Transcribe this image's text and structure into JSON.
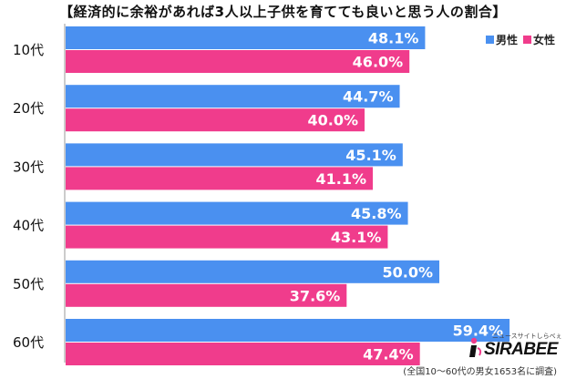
{
  "title": "【経済的に余裕があれば3人以上子供を育てても良いと思う人の割合】",
  "legend": [
    {
      "label": "男性",
      "color": "#4a90f0"
    },
    {
      "label": "女性",
      "color": "#f03c8c"
    }
  ],
  "chart_data": {
    "type": "bar",
    "orientation": "horizontal",
    "categories": [
      "10代",
      "20代",
      "30代",
      "40代",
      "50代",
      "60代"
    ],
    "series": [
      {
        "name": "男性",
        "values": [
          48.1,
          44.7,
          45.1,
          45.8,
          50.0,
          59.4
        ],
        "labels": [
          "48.1%",
          "44.7%",
          "45.1%",
          "45.8%",
          "50.0%",
          "59.4%"
        ],
        "color": "#4a90f0"
      },
      {
        "name": "女性",
        "values": [
          46.0,
          40.0,
          41.1,
          43.1,
          37.6,
          47.4
        ],
        "labels": [
          "46.0%",
          "40.0%",
          "41.1%",
          "43.1%",
          "37.6%",
          "47.4%"
        ],
        "color": "#f03c8c"
      }
    ],
    "xlim": [
      0,
      65
    ],
    "grid": false,
    "legend_position": "top-right"
  },
  "logo": {
    "tagline": "ニュースサイトしらべぇ",
    "name": "SIRABEE"
  },
  "footnote": "(全国10～60代の男女1653名に調査)"
}
